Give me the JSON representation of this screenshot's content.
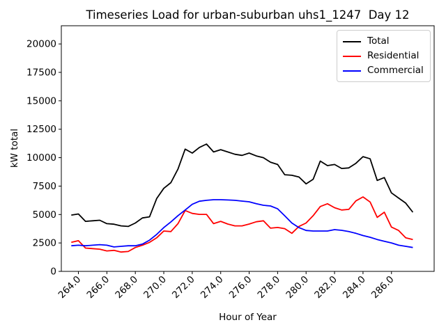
{
  "chart_data": {
    "type": "line",
    "title": "Timeseries Load for urban-suburban uhs1_1247  Day 12",
    "xlabel": "Hour of Year",
    "ylabel": "kW total",
    "xlim": [
      262.8,
      289.0
    ],
    "ylim": [
      0,
      21600
    ],
    "grid": false,
    "legend_position": "upper right",
    "background_color": "#ffffff",
    "axis_color": "#000000",
    "legend_edge_color": "#cccccc",
    "xtick_values": [
      264,
      266,
      268,
      270,
      272,
      274,
      276,
      278,
      280,
      282,
      284,
      286
    ],
    "xtick_labels": [
      "264.0",
      "266.0",
      "268.0",
      "270.0",
      "272.0",
      "274.0",
      "276.0",
      "278.0",
      "280.0",
      "282.0",
      "284.0",
      "286.0"
    ],
    "ytick_values": [
      0,
      2500,
      5000,
      7500,
      10000,
      12500,
      15000,
      17500,
      20000
    ],
    "x": [
      263.5,
      264.0,
      264.5,
      265.0,
      265.5,
      266.0,
      266.5,
      267.0,
      267.5,
      268.0,
      268.5,
      269.0,
      269.5,
      270.0,
      270.5,
      271.0,
      271.5,
      272.0,
      272.5,
      273.0,
      273.5,
      274.0,
      274.5,
      275.0,
      275.5,
      276.0,
      276.5,
      277.0,
      277.5,
      278.0,
      278.5,
      279.0,
      279.5,
      280.0,
      280.5,
      281.0,
      281.5,
      282.0,
      282.5,
      283.0,
      283.5,
      284.0,
      284.5,
      285.0,
      285.5,
      286.0,
      286.5,
      287.0,
      287.5
    ],
    "series": [
      {
        "name": "Total",
        "color": "#000000",
        "values": [
          4950,
          5050,
          4400,
          4450,
          4500,
          4200,
          4150,
          4000,
          3950,
          4250,
          4700,
          4800,
          6400,
          7300,
          7800,
          9000,
          10750,
          10400,
          10900,
          11200,
          10500,
          10700,
          10500,
          10300,
          10200,
          10400,
          10150,
          10000,
          9600,
          9400,
          8500,
          8450,
          8300,
          7700,
          8100,
          9700,
          9300,
          9400,
          9050,
          9100,
          9500,
          10090,
          9900,
          8000,
          8250,
          6900,
          6450,
          6000,
          5200
        ]
      },
      {
        "name": "Residential",
        "color": "#ff0000",
        "values": [
          2550,
          2700,
          2050,
          2000,
          1950,
          1800,
          1850,
          1700,
          1750,
          2100,
          2300,
          2550,
          2950,
          3550,
          3500,
          4200,
          5350,
          5100,
          5010,
          5010,
          4200,
          4400,
          4160,
          4000,
          4000,
          4160,
          4360,
          4450,
          3800,
          3860,
          3760,
          3350,
          3950,
          4250,
          4900,
          5700,
          5950,
          5600,
          5400,
          5450,
          6200,
          6550,
          6100,
          4750,
          5200,
          3900,
          3600,
          2950,
          2800
        ]
      },
      {
        "name": "Commercial",
        "color": "#0000ff",
        "values": [
          2250,
          2300,
          2250,
          2300,
          2350,
          2300,
          2150,
          2200,
          2250,
          2250,
          2400,
          2750,
          3250,
          3850,
          4350,
          4900,
          5400,
          5900,
          6170,
          6250,
          6300,
          6300,
          6280,
          6250,
          6180,
          6120,
          5950,
          5810,
          5750,
          5500,
          4890,
          4250,
          3850,
          3600,
          3550,
          3550,
          3550,
          3670,
          3610,
          3500,
          3350,
          3150,
          3000,
          2800,
          2650,
          2500,
          2300,
          2200,
          2100
        ]
      }
    ]
  }
}
